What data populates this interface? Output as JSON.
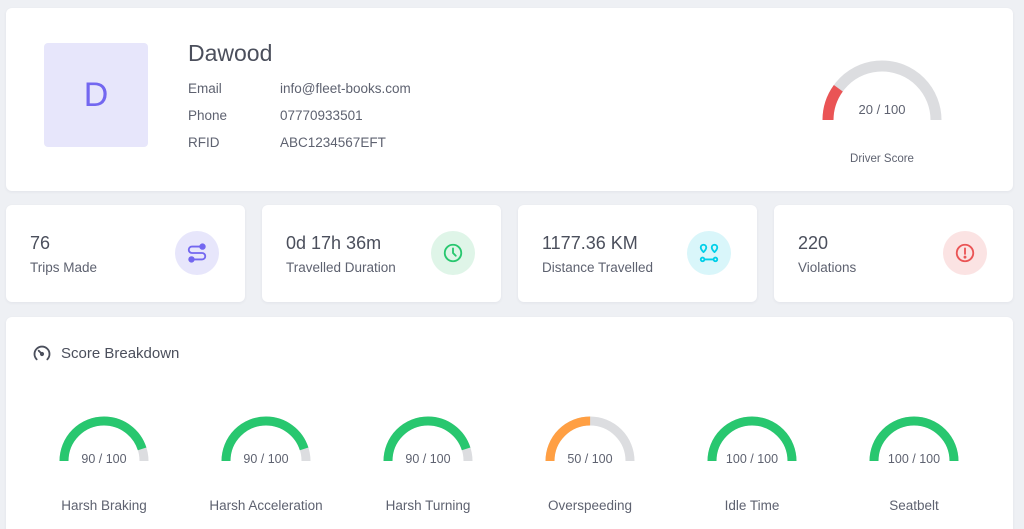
{
  "driver": {
    "initial": "D",
    "name": "Dawood",
    "fields": [
      {
        "label": "Email",
        "value": "info@fleet-books.com"
      },
      {
        "label": "Phone",
        "value": "07770933501"
      },
      {
        "label": "RFID",
        "value": "ABC1234567EFT"
      }
    ],
    "score": {
      "text": "20 / 100",
      "value": 20,
      "max": 100,
      "label": "Driver Score",
      "color": "#ea5455"
    }
  },
  "stats": [
    {
      "value": "76",
      "label": "Trips Made",
      "icon": "route-icon",
      "color": "#7367f0",
      "bg": "#e7e6fb"
    },
    {
      "value": "0d 17h 36m",
      "label": "Travelled Duration",
      "icon": "clock-icon",
      "color": "#28c76f",
      "bg": "#dff5e8"
    },
    {
      "value": "1177.36 KM",
      "label": "Distance Travelled",
      "icon": "map-pins-icon",
      "color": "#00cfe8",
      "bg": "#d9f6fa"
    },
    {
      "value": "220",
      "label": "Violations",
      "icon": "alert-circle-icon",
      "color": "#ea5455",
      "bg": "#fbe3e3"
    }
  ],
  "breakdown": {
    "title": "Score Breakdown",
    "items": [
      {
        "label": "Harsh Braking",
        "text": "90 / 100",
        "value": 90,
        "max": 100,
        "color": "#28c76f"
      },
      {
        "label": "Harsh Acceleration",
        "text": "90 / 100",
        "value": 90,
        "max": 100,
        "color": "#28c76f"
      },
      {
        "label": "Harsh Turning",
        "text": "90 / 100",
        "value": 90,
        "max": 100,
        "color": "#28c76f"
      },
      {
        "label": "Overspeeding",
        "text": "50 / 100",
        "value": 50,
        "max": 100,
        "color": "#ff9f43"
      },
      {
        "label": "Idle Time",
        "text": "100 / 100",
        "value": 100,
        "max": 100,
        "color": "#28c76f"
      },
      {
        "label": "Seatbelt",
        "text": "100 / 100",
        "value": 100,
        "max": 100,
        "color": "#28c76f"
      }
    ]
  },
  "colors": {
    "track": "#dcdde0"
  }
}
